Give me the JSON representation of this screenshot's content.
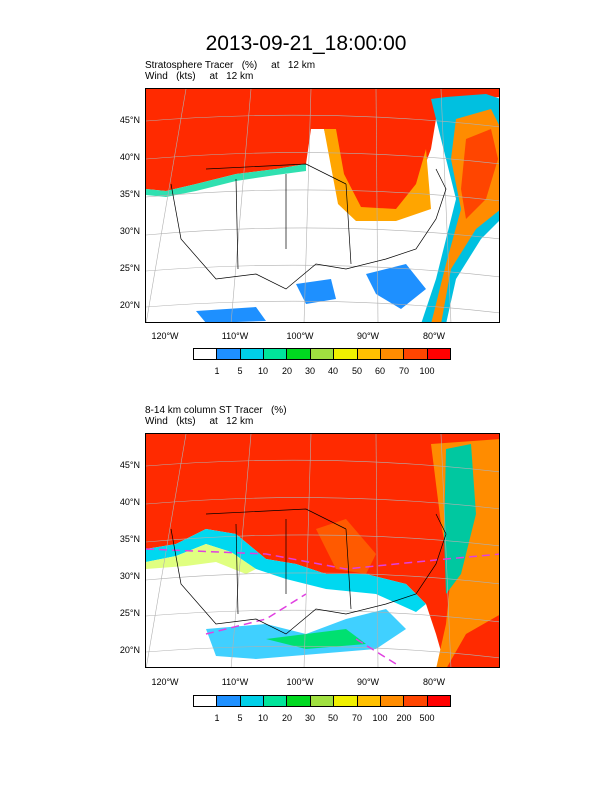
{
  "page_title": "2013-09-21_18:00:00",
  "colors": [
    "#ffffff",
    "#1e90ff",
    "#00cfe8",
    "#00e49a",
    "#00d820",
    "#a0e040",
    "#f0f000",
    "#ffc000",
    "#ff8c00",
    "#ff4500",
    "#ff0000"
  ],
  "panels": [
    {
      "title_line1": "Stratosphere Tracer   (%)     at   12 km",
      "title_line2": "Wind   (kts)     at   12 km",
      "lat_labels": [
        "45°N",
        "40°N",
        "35°N",
        "30°N",
        "25°N",
        "20°N"
      ],
      "lon_labels": [
        "120°W",
        "110°W",
        "100°W",
        "90°W",
        "80°W"
      ],
      "colorbar_labels": [
        "1",
        "5",
        "10",
        "20",
        "30",
        "40",
        "50",
        "60",
        "70",
        "100"
      ]
    },
    {
      "title_line1": "8-14 km column ST Tracer   (%)",
      "title_line2": "Wind   (kts)     at   12 km",
      "lat_labels": [
        "45°N",
        "40°N",
        "35°N",
        "30°N",
        "25°N",
        "20°N"
      ],
      "lon_labels": [
        "120°W",
        "110°W",
        "100°W",
        "90°W",
        "80°W"
      ],
      "colorbar_labels": [
        "1",
        "5",
        "10",
        "20",
        "30",
        "50",
        "70",
        "100",
        "200",
        "500"
      ]
    }
  ]
}
